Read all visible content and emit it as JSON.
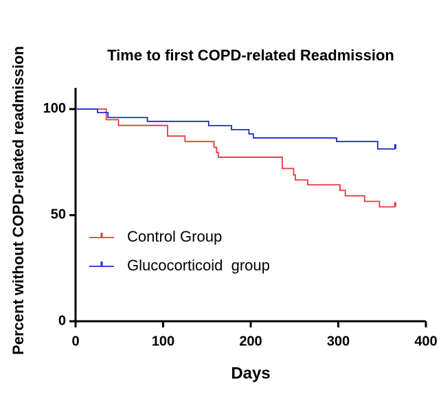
{
  "chart_data": {
    "type": "line",
    "step": "post",
    "title": "Time to first COPD-related Readmission",
    "xlabel": "Days",
    "ylabel": "Percent without COPD-related readmission",
    "xlim": [
      0,
      400
    ],
    "ylim": [
      0,
      110
    ],
    "xticks": [
      0,
      100,
      200,
      300,
      400
    ],
    "yticks": [
      0,
      50,
      100
    ],
    "series": [
      {
        "name": "Control Group",
        "color": "#e8383d",
        "x": [
          0,
          35,
          49,
          105,
          125,
          158,
          161,
          163,
          236,
          249,
          251,
          265,
          302,
          308,
          330,
          347,
          365
        ],
        "values": [
          100,
          95,
          92.3,
          87.3,
          84.7,
          82,
          79.5,
          77.3,
          72,
          69,
          66.6,
          64.3,
          61.7,
          59.1,
          56.5,
          53.9,
          53.9
        ]
      },
      {
        "name": "Glucocorticoid  group",
        "color": "#1f2bd1",
        "x": [
          0,
          25,
          37,
          82,
          152,
          178,
          198,
          203,
          298,
          345,
          365
        ],
        "values": [
          100,
          98.4,
          96,
          94.2,
          92.2,
          90.3,
          88.3,
          86.4,
          84.7,
          81.2,
          81.2
        ]
      }
    ]
  }
}
